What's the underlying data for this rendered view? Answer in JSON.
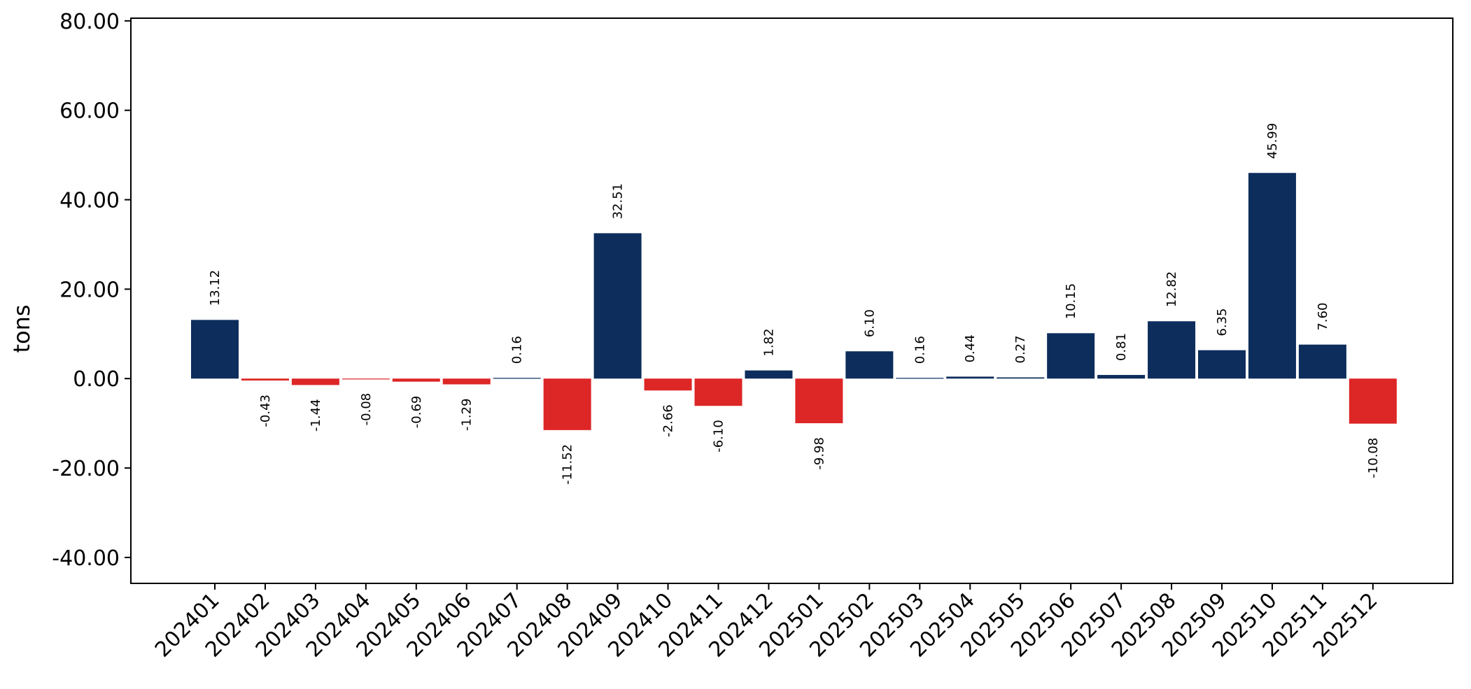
{
  "chart_data": {
    "type": "bar",
    "title": "",
    "xlabel": "",
    "ylabel": "tons",
    "ylim": [
      -45.8,
      80.6
    ],
    "yticks": [
      -40,
      -20,
      0,
      20,
      40,
      60,
      80
    ],
    "ytick_labels": [
      "-40.00",
      "-20.00",
      "0.00",
      "20.00",
      "40.00",
      "60.00",
      "80.00"
    ],
    "grid": false,
    "legend": "none",
    "colors": {
      "positive": "#0d2d5c",
      "negative": "#dd2626"
    },
    "categories": [
      "202401",
      "202402",
      "202403",
      "202404",
      "202405",
      "202406",
      "202407",
      "202408",
      "202409",
      "202410",
      "202411",
      "202412",
      "202501",
      "202502",
      "202503",
      "202504",
      "202505",
      "202506",
      "202507",
      "202508",
      "202509",
      "202510",
      "202511",
      "202512"
    ],
    "values": [
      13.12,
      -0.43,
      -1.44,
      -0.08,
      -0.69,
      -1.29,
      0.16,
      -11.52,
      32.51,
      -2.66,
      -6.1,
      1.82,
      -9.98,
      6.1,
      0.16,
      0.44,
      0.27,
      10.15,
      0.81,
      12.82,
      6.35,
      45.99,
      7.6,
      -10.08
    ],
    "value_labels": [
      "13.12",
      "-0.43",
      "-1.44",
      "-0.08",
      "-0.69",
      "-1.29",
      "0.16",
      "-11.52",
      "32.51",
      "-2.66",
      "-6.10",
      "1.82",
      "-9.98",
      "6.10",
      "0.16",
      "0.44",
      "0.27",
      "10.15",
      "0.81",
      "12.82",
      "6.35",
      "45.99",
      "7.60",
      "-10.08"
    ]
  }
}
